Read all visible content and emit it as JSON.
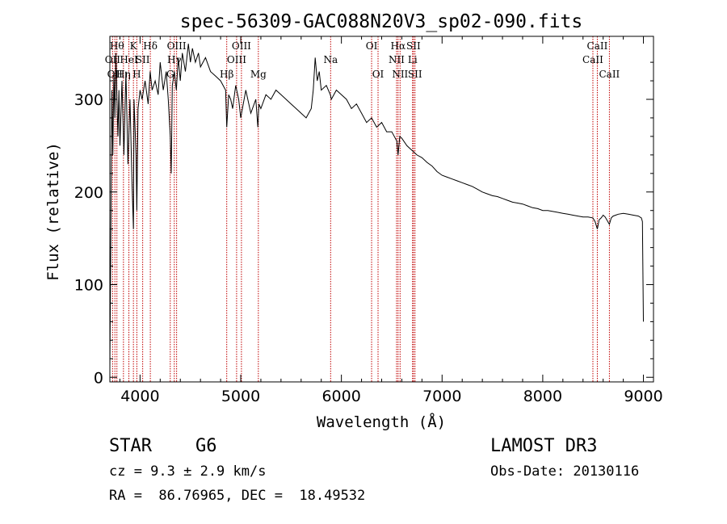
{
  "chart_data": {
    "type": "line",
    "title": "spec-56309-GAC088N20V3_sp02-090.fits",
    "xlabel": "Wavelength (Å)",
    "ylabel": "Flux (relative)",
    "xlim": [
      3700,
      9100
    ],
    "ylim": [
      -5,
      368
    ],
    "x_ticks": [
      4000,
      5000,
      6000,
      7000,
      8000,
      9000
    ],
    "y_ticks": [
      0,
      100,
      200,
      300
    ],
    "series": [
      {
        "name": "flux",
        "x": [
          3700,
          3710,
          3720,
          3730,
          3740,
          3750,
          3760,
          3770,
          3780,
          3790,
          3800,
          3820,
          3840,
          3860,
          3880,
          3900,
          3920,
          3934,
          3940,
          3960,
          3968,
          3980,
          4000,
          4020,
          4050,
          4080,
          4100,
          4120,
          4150,
          4180,
          4200,
          4230,
          4260,
          4280,
          4300,
          4310,
          4320,
          4340,
          4360,
          4380,
          4400,
          4420,
          4450,
          4480,
          4500,
          4520,
          4550,
          4580,
          4600,
          4650,
          4700,
          4750,
          4800,
          4850,
          4861,
          4880,
          4900,
          4920,
          4950,
          4980,
          5000,
          5050,
          5100,
          5150,
          5170,
          5180,
          5200,
          5250,
          5300,
          5350,
          5400,
          5450,
          5500,
          5550,
          5600,
          5650,
          5700,
          5720,
          5740,
          5760,
          5780,
          5800,
          5850,
          5890,
          5900,
          5950,
          6000,
          6050,
          6100,
          6150,
          6200,
          6250,
          6300,
          6350,
          6400,
          6450,
          6500,
          6550,
          6563,
          6580,
          6600,
          6650,
          6700,
          6750,
          6800,
          6850,
          6900,
          6950,
          7000,
          7050,
          7100,
          7150,
          7200,
          7250,
          7300,
          7350,
          7400,
          7450,
          7500,
          7550,
          7600,
          7650,
          7700,
          7750,
          7800,
          7850,
          7900,
          7950,
          8000,
          8050,
          8100,
          8150,
          8200,
          8250,
          8300,
          8350,
          8400,
          8450,
          8498,
          8520,
          8542,
          8560,
          8580,
          8600,
          8620,
          8662,
          8680,
          8700,
          8750,
          8800,
          8850,
          8900,
          8950,
          8980,
          8990,
          9000
        ],
        "values": [
          10,
          150,
          310,
          240,
          330,
          280,
          350,
          300,
          260,
          310,
          250,
          320,
          240,
          330,
          230,
          300,
          210,
          160,
          300,
          240,
          180,
          290,
          310,
          300,
          320,
          295,
          330,
          310,
          320,
          305,
          340,
          310,
          330,
          300,
          260,
          220,
          315,
          330,
          310,
          345,
          320,
          350,
          330,
          360,
          340,
          355,
          340,
          350,
          335,
          345,
          330,
          325,
          320,
          310,
          270,
          305,
          300,
          290,
          315,
          300,
          280,
          310,
          285,
          300,
          270,
          295,
          290,
          305,
          300,
          310,
          305,
          300,
          295,
          290,
          285,
          280,
          290,
          310,
          345,
          320,
          330,
          310,
          315,
          305,
          300,
          310,
          305,
          300,
          290,
          295,
          285,
          275,
          280,
          270,
          275,
          265,
          265,
          255,
          240,
          260,
          258,
          250,
          245,
          240,
          237,
          232,
          228,
          222,
          218,
          216,
          214,
          212,
          210,
          208,
          206,
          203,
          200,
          198,
          196,
          195,
          193,
          191,
          189,
          188,
          187,
          185,
          183,
          182,
          180,
          180,
          179,
          178,
          177,
          176,
          175,
          174,
          173,
          173,
          172,
          168,
          160,
          170,
          172,
          175,
          173,
          165,
          172,
          174,
          176,
          177,
          176,
          175,
          174,
          172,
          168,
          60
        ]
      }
    ],
    "line_markers": [
      {
        "wavelength": 3727,
        "label": "OII",
        "row": 1
      },
      {
        "wavelength": 3750,
        "label": "OII",
        "row": 2
      },
      {
        "wavelength": 3770,
        "label": "Hθ",
        "row": 0
      },
      {
        "wavelength": 3835,
        "label": "Hη",
        "row": 2
      },
      {
        "wavelength": 3889,
        "label": "HeI",
        "row": 1
      },
      {
        "wavelength": 3934,
        "label": "K",
        "row": 0
      },
      {
        "wavelength": 3968,
        "label": "H",
        "row": 2
      },
      {
        "wavelength": 4026,
        "label": "SII",
        "row": 1
      },
      {
        "wavelength": 4102,
        "label": "Hδ",
        "row": 0
      },
      {
        "wavelength": 4300,
        "label": "G",
        "row": 2
      },
      {
        "wavelength": 4340,
        "label": "Hγ",
        "row": 1
      },
      {
        "wavelength": 4363,
        "label": "OIII",
        "row": 0
      },
      {
        "wavelength": 4861,
        "label": "Hβ",
        "row": 2
      },
      {
        "wavelength": 4959,
        "label": "OIII",
        "row": 1
      },
      {
        "wavelength": 5007,
        "label": "OIII",
        "row": 0
      },
      {
        "wavelength": 5175,
        "label": "Mg",
        "row": 2
      },
      {
        "wavelength": 5893,
        "label": "Na",
        "row": 1
      },
      {
        "wavelength": 6300,
        "label": "OI",
        "row": 0
      },
      {
        "wavelength": 6364,
        "label": "OI",
        "row": 2
      },
      {
        "wavelength": 6548,
        "label": "NII",
        "row": 1
      },
      {
        "wavelength": 6563,
        "label": "Hα",
        "row": 0
      },
      {
        "wavelength": 6583,
        "label": "NII",
        "row": 2
      },
      {
        "wavelength": 6707,
        "label": "Li",
        "row": 1
      },
      {
        "wavelength": 6716,
        "label": "SII",
        "row": 0
      },
      {
        "wavelength": 6731,
        "label": "SII",
        "row": 2
      },
      {
        "wavelength": 8498,
        "label": "CaII",
        "row": 1
      },
      {
        "wavelength": 8542,
        "label": "CaII",
        "row": 0
      },
      {
        "wavelength": 8662,
        "label": "CaII",
        "row": 2
      }
    ],
    "line_marker_color": "#c00000"
  },
  "info": {
    "obj_class": "STAR",
    "subclass": "G6",
    "survey": "LAMOST DR3",
    "cz": "cz = 9.3 ± 2.9 km/s",
    "obs_date": "Obs-Date: 20130116",
    "coords": "RA =  86.76965, DEC =  18.49532"
  }
}
